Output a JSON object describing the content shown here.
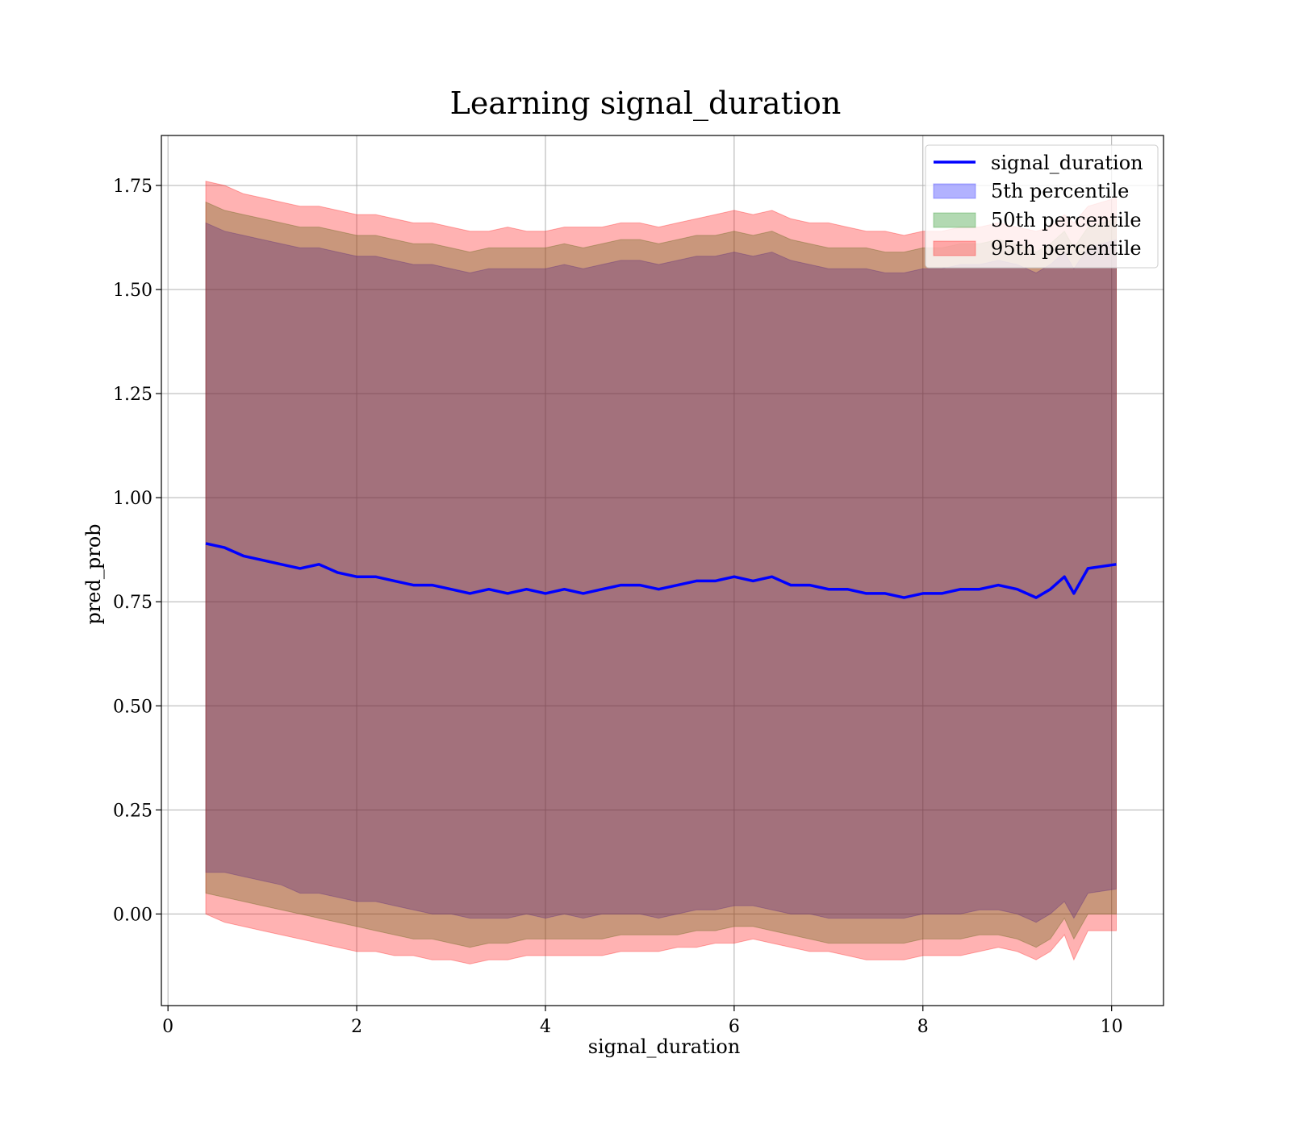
{
  "chart_data": {
    "type": "area",
    "title": "Learning signal_duration",
    "xlabel": "signal_duration",
    "ylabel": "pred_prob",
    "xlim": [
      -0.07,
      10.55
    ],
    "ylim": [
      -0.22,
      1.87
    ],
    "xticks": [
      0,
      2,
      4,
      6,
      8,
      10
    ],
    "xtick_labels": [
      "0",
      "2",
      "4",
      "6",
      "8",
      "10"
    ],
    "yticks": [
      0.0,
      0.25,
      0.5,
      0.75,
      1.0,
      1.25,
      1.5,
      1.75
    ],
    "ytick_labels": [
      "0.00",
      "0.25",
      "0.50",
      "0.75",
      "1.00",
      "1.25",
      "1.50",
      "1.75"
    ],
    "grid": true,
    "legend_position": "top-right",
    "legend": [
      "signal_duration",
      "5th percentile",
      "50th percentile",
      "95th percentile"
    ],
    "colors": {
      "line": "#0000ff",
      "band_5th": "#0000ff",
      "band_50th": "#008000",
      "band_95th": "#ff0000",
      "grid": "#b0b0b0"
    },
    "x": [
      0.4,
      0.6,
      0.8,
      1.0,
      1.2,
      1.4,
      1.6,
      1.8,
      2.0,
      2.2,
      2.4,
      2.6,
      2.8,
      3.0,
      3.2,
      3.4,
      3.6,
      3.8,
      4.0,
      4.2,
      4.4,
      4.6,
      4.8,
      5.0,
      5.2,
      5.4,
      5.6,
      5.8,
      6.0,
      6.2,
      6.4,
      6.6,
      6.8,
      7.0,
      7.2,
      7.4,
      7.6,
      7.8,
      8.0,
      8.2,
      8.4,
      8.6,
      8.8,
      9.0,
      9.2,
      9.35,
      9.5,
      9.6,
      9.75,
      10.05
    ],
    "series": [
      {
        "name": "signal_duration",
        "values": [
          0.89,
          0.88,
          0.86,
          0.85,
          0.84,
          0.83,
          0.84,
          0.82,
          0.81,
          0.81,
          0.8,
          0.79,
          0.79,
          0.78,
          0.77,
          0.78,
          0.77,
          0.78,
          0.77,
          0.78,
          0.77,
          0.78,
          0.79,
          0.79,
          0.78,
          0.79,
          0.8,
          0.8,
          0.81,
          0.8,
          0.81,
          0.79,
          0.79,
          0.78,
          0.78,
          0.77,
          0.77,
          0.76,
          0.77,
          0.77,
          0.78,
          0.78,
          0.79,
          0.78,
          0.76,
          0.78,
          0.81,
          0.77,
          0.83,
          0.84
        ]
      },
      {
        "name": "5th percentile",
        "lower": [
          0.1,
          0.1,
          0.09,
          0.08,
          0.07,
          0.05,
          0.05,
          0.04,
          0.03,
          0.03,
          0.02,
          0.01,
          0.0,
          0.0,
          -0.01,
          -0.01,
          -0.01,
          0.0,
          -0.01,
          0.0,
          -0.01,
          0.0,
          0.0,
          0.0,
          -0.01,
          0.0,
          0.01,
          0.01,
          0.02,
          0.02,
          0.01,
          0.0,
          0.0,
          -0.01,
          -0.01,
          -0.01,
          -0.01,
          -0.01,
          0.0,
          0.0,
          0.0,
          0.01,
          0.01,
          0.0,
          -0.02,
          0.0,
          0.03,
          -0.01,
          0.05,
          0.06
        ],
        "upper": [
          1.66,
          1.64,
          1.63,
          1.62,
          1.61,
          1.6,
          1.6,
          1.59,
          1.58,
          1.58,
          1.57,
          1.56,
          1.56,
          1.55,
          1.54,
          1.55,
          1.55,
          1.55,
          1.55,
          1.56,
          1.55,
          1.56,
          1.57,
          1.57,
          1.56,
          1.57,
          1.58,
          1.58,
          1.59,
          1.58,
          1.59,
          1.57,
          1.56,
          1.55,
          1.55,
          1.55,
          1.54,
          1.54,
          1.55,
          1.55,
          1.56,
          1.56,
          1.57,
          1.56,
          1.54,
          1.56,
          1.59,
          1.55,
          1.6,
          1.62
        ]
      },
      {
        "name": "50th percentile",
        "lower": [
          0.05,
          0.04,
          0.03,
          0.02,
          0.01,
          0.0,
          -0.01,
          -0.02,
          -0.03,
          -0.04,
          -0.05,
          -0.06,
          -0.06,
          -0.07,
          -0.08,
          -0.07,
          -0.07,
          -0.06,
          -0.06,
          -0.06,
          -0.06,
          -0.06,
          -0.05,
          -0.05,
          -0.05,
          -0.05,
          -0.04,
          -0.04,
          -0.03,
          -0.03,
          -0.04,
          -0.05,
          -0.06,
          -0.07,
          -0.07,
          -0.07,
          -0.07,
          -0.07,
          -0.06,
          -0.06,
          -0.06,
          -0.05,
          -0.05,
          -0.06,
          -0.08,
          -0.06,
          -0.01,
          -0.06,
          0.0,
          0.0
        ],
        "upper": [
          1.71,
          1.69,
          1.68,
          1.67,
          1.66,
          1.65,
          1.65,
          1.64,
          1.63,
          1.63,
          1.62,
          1.61,
          1.61,
          1.6,
          1.59,
          1.6,
          1.6,
          1.6,
          1.6,
          1.61,
          1.6,
          1.61,
          1.62,
          1.62,
          1.61,
          1.62,
          1.63,
          1.63,
          1.64,
          1.63,
          1.64,
          1.62,
          1.61,
          1.6,
          1.6,
          1.6,
          1.59,
          1.59,
          1.6,
          1.6,
          1.61,
          1.61,
          1.62,
          1.61,
          1.59,
          1.61,
          1.64,
          1.6,
          1.65,
          1.67
        ]
      },
      {
        "name": "95th percentile",
        "lower": [
          0.0,
          -0.02,
          -0.03,
          -0.04,
          -0.05,
          -0.06,
          -0.07,
          -0.08,
          -0.09,
          -0.09,
          -0.1,
          -0.1,
          -0.11,
          -0.11,
          -0.12,
          -0.11,
          -0.11,
          -0.1,
          -0.1,
          -0.1,
          -0.1,
          -0.1,
          -0.09,
          -0.09,
          -0.09,
          -0.08,
          -0.08,
          -0.07,
          -0.07,
          -0.06,
          -0.07,
          -0.08,
          -0.09,
          -0.09,
          -0.1,
          -0.11,
          -0.11,
          -0.11,
          -0.1,
          -0.1,
          -0.1,
          -0.09,
          -0.08,
          -0.09,
          -0.11,
          -0.09,
          -0.05,
          -0.11,
          -0.04,
          -0.04
        ],
        "upper": [
          1.76,
          1.75,
          1.73,
          1.72,
          1.71,
          1.7,
          1.7,
          1.69,
          1.68,
          1.68,
          1.67,
          1.66,
          1.66,
          1.65,
          1.64,
          1.64,
          1.65,
          1.64,
          1.64,
          1.65,
          1.65,
          1.65,
          1.66,
          1.66,
          1.65,
          1.66,
          1.67,
          1.68,
          1.69,
          1.68,
          1.69,
          1.67,
          1.66,
          1.66,
          1.65,
          1.64,
          1.64,
          1.63,
          1.64,
          1.64,
          1.65,
          1.65,
          1.66,
          1.65,
          1.64,
          1.65,
          1.68,
          1.66,
          1.7,
          1.72
        ]
      }
    ]
  }
}
